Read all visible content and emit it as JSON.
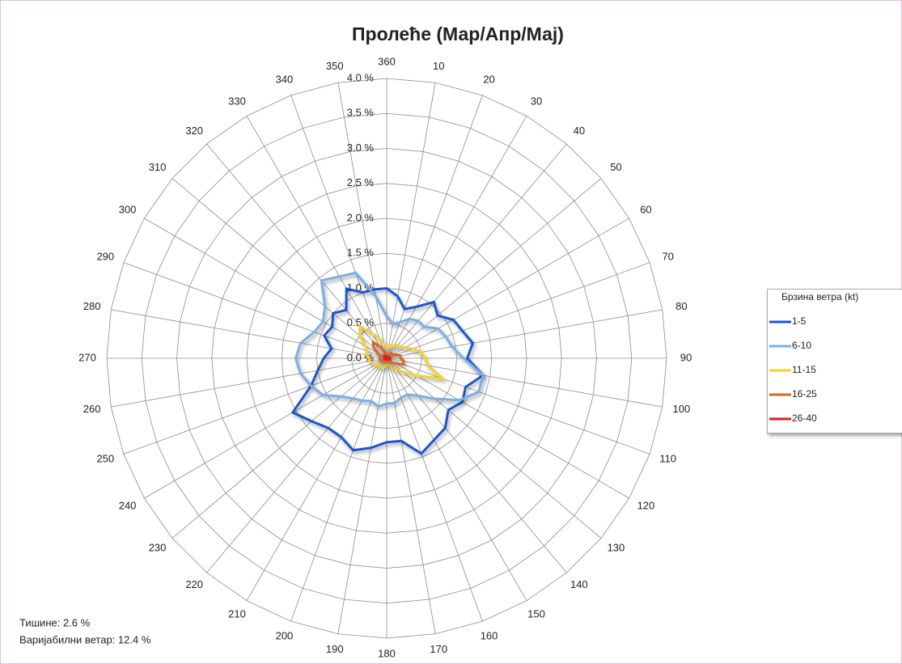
{
  "chart_data": {
    "type": "radar",
    "title": "Пролеће (Мар/Апр/Мај)",
    "categories": [
      360,
      10,
      20,
      30,
      40,
      50,
      60,
      70,
      80,
      90,
      100,
      110,
      120,
      130,
      140,
      150,
      160,
      170,
      180,
      190,
      200,
      210,
      220,
      230,
      240,
      250,
      260,
      270,
      280,
      290,
      300,
      310,
      320,
      330,
      340,
      350
    ],
    "ylim": [
      0,
      4
    ],
    "yticks": [
      {
        "value": 0,
        "label": "0.0 %"
      },
      {
        "value": 0.5,
        "label": "0.5 %"
      },
      {
        "value": 1,
        "label": "1.0 %"
      },
      {
        "value": 1.5,
        "label": "1.5 %"
      },
      {
        "value": 2,
        "label": "2.0 %"
      },
      {
        "value": 2.5,
        "label": "2.5 %"
      },
      {
        "value": 3,
        "label": "3.0 %"
      },
      {
        "value": 3.5,
        "label": "3.5 %"
      },
      {
        "value": 4,
        "label": "4.0 %"
      }
    ],
    "grid": true,
    "legend": {
      "title": "Брзина ветра (kt)",
      "position": "right"
    },
    "series": [
      {
        "name": "1-5",
        "color": "#1a56cc",
        "values": [
          1.0,
          0.9,
          0.75,
          0.85,
          1.05,
          0.95,
          1.1,
          1.15,
          1.25,
          1.15,
          1.4,
          1.2,
          1.25,
          1.15,
          1.3,
          1.35,
          1.45,
          1.2,
          1.2,
          1.3,
          1.4,
          1.3,
          1.3,
          1.4,
          1.55,
          1.15,
          1.0,
          0.9,
          0.8,
          0.95,
          0.9,
          1.0,
          0.9,
          1.15,
          1.0,
          1.0
        ]
      },
      {
        "name": "6-10",
        "color": "#7aaee8",
        "values": [
          0.6,
          0.5,
          0.55,
          0.65,
          0.7,
          0.7,
          0.85,
          0.9,
          0.95,
          1.1,
          1.4,
          1.4,
          1.2,
          0.9,
          0.7,
          0.6,
          0.6,
          0.65,
          0.65,
          0.7,
          0.65,
          0.7,
          0.75,
          0.85,
          1.05,
          1.15,
          1.25,
          1.3,
          1.25,
          1.1,
          1.05,
          1.15,
          1.45,
          1.35,
          1.3,
          0.9
        ]
      },
      {
        "name": "11-15",
        "color": "#f2d22e",
        "values": [
          0.15,
          0.15,
          0.2,
          0.2,
          0.25,
          0.25,
          0.3,
          0.4,
          0.5,
          0.55,
          0.6,
          0.85,
          0.5,
          0.3,
          0.2,
          0.15,
          0.1,
          0.1,
          0.1,
          0.1,
          0.15,
          0.15,
          0.15,
          0.15,
          0.2,
          0.2,
          0.25,
          0.25,
          0.3,
          0.3,
          0.35,
          0.5,
          0.6,
          0.4,
          0.3,
          0.2
        ]
      },
      {
        "name": "16-25",
        "color": "#d9661c",
        "values": [
          0.05,
          0.05,
          0.05,
          0.05,
          0.1,
          0.1,
          0.1,
          0.15,
          0.2,
          0.2,
          0.25,
          0.25,
          0.15,
          0.1,
          0.05,
          0.05,
          0.05,
          0.05,
          0.05,
          0.05,
          0.05,
          0.05,
          0.05,
          0.05,
          0.05,
          0.1,
          0.1,
          0.1,
          0.1,
          0.1,
          0.15,
          0.25,
          0.3,
          0.2,
          0.1,
          0.05
        ]
      },
      {
        "name": "26-40",
        "color": "#e21a1a",
        "values": [
          0.02,
          0.02,
          0.02,
          0.02,
          0.02,
          0.02,
          0.03,
          0.03,
          0.04,
          0.04,
          0.05,
          0.05,
          0.03,
          0.02,
          0.02,
          0.02,
          0.02,
          0.02,
          0.02,
          0.02,
          0.02,
          0.02,
          0.02,
          0.02,
          0.02,
          0.02,
          0.03,
          0.03,
          0.03,
          0.03,
          0.03,
          0.05,
          0.05,
          0.04,
          0.03,
          0.02
        ]
      }
    ],
    "annotations": [
      "Тишине:  2.6 %",
      "Варијабилни ветар: 12.4 %"
    ]
  }
}
